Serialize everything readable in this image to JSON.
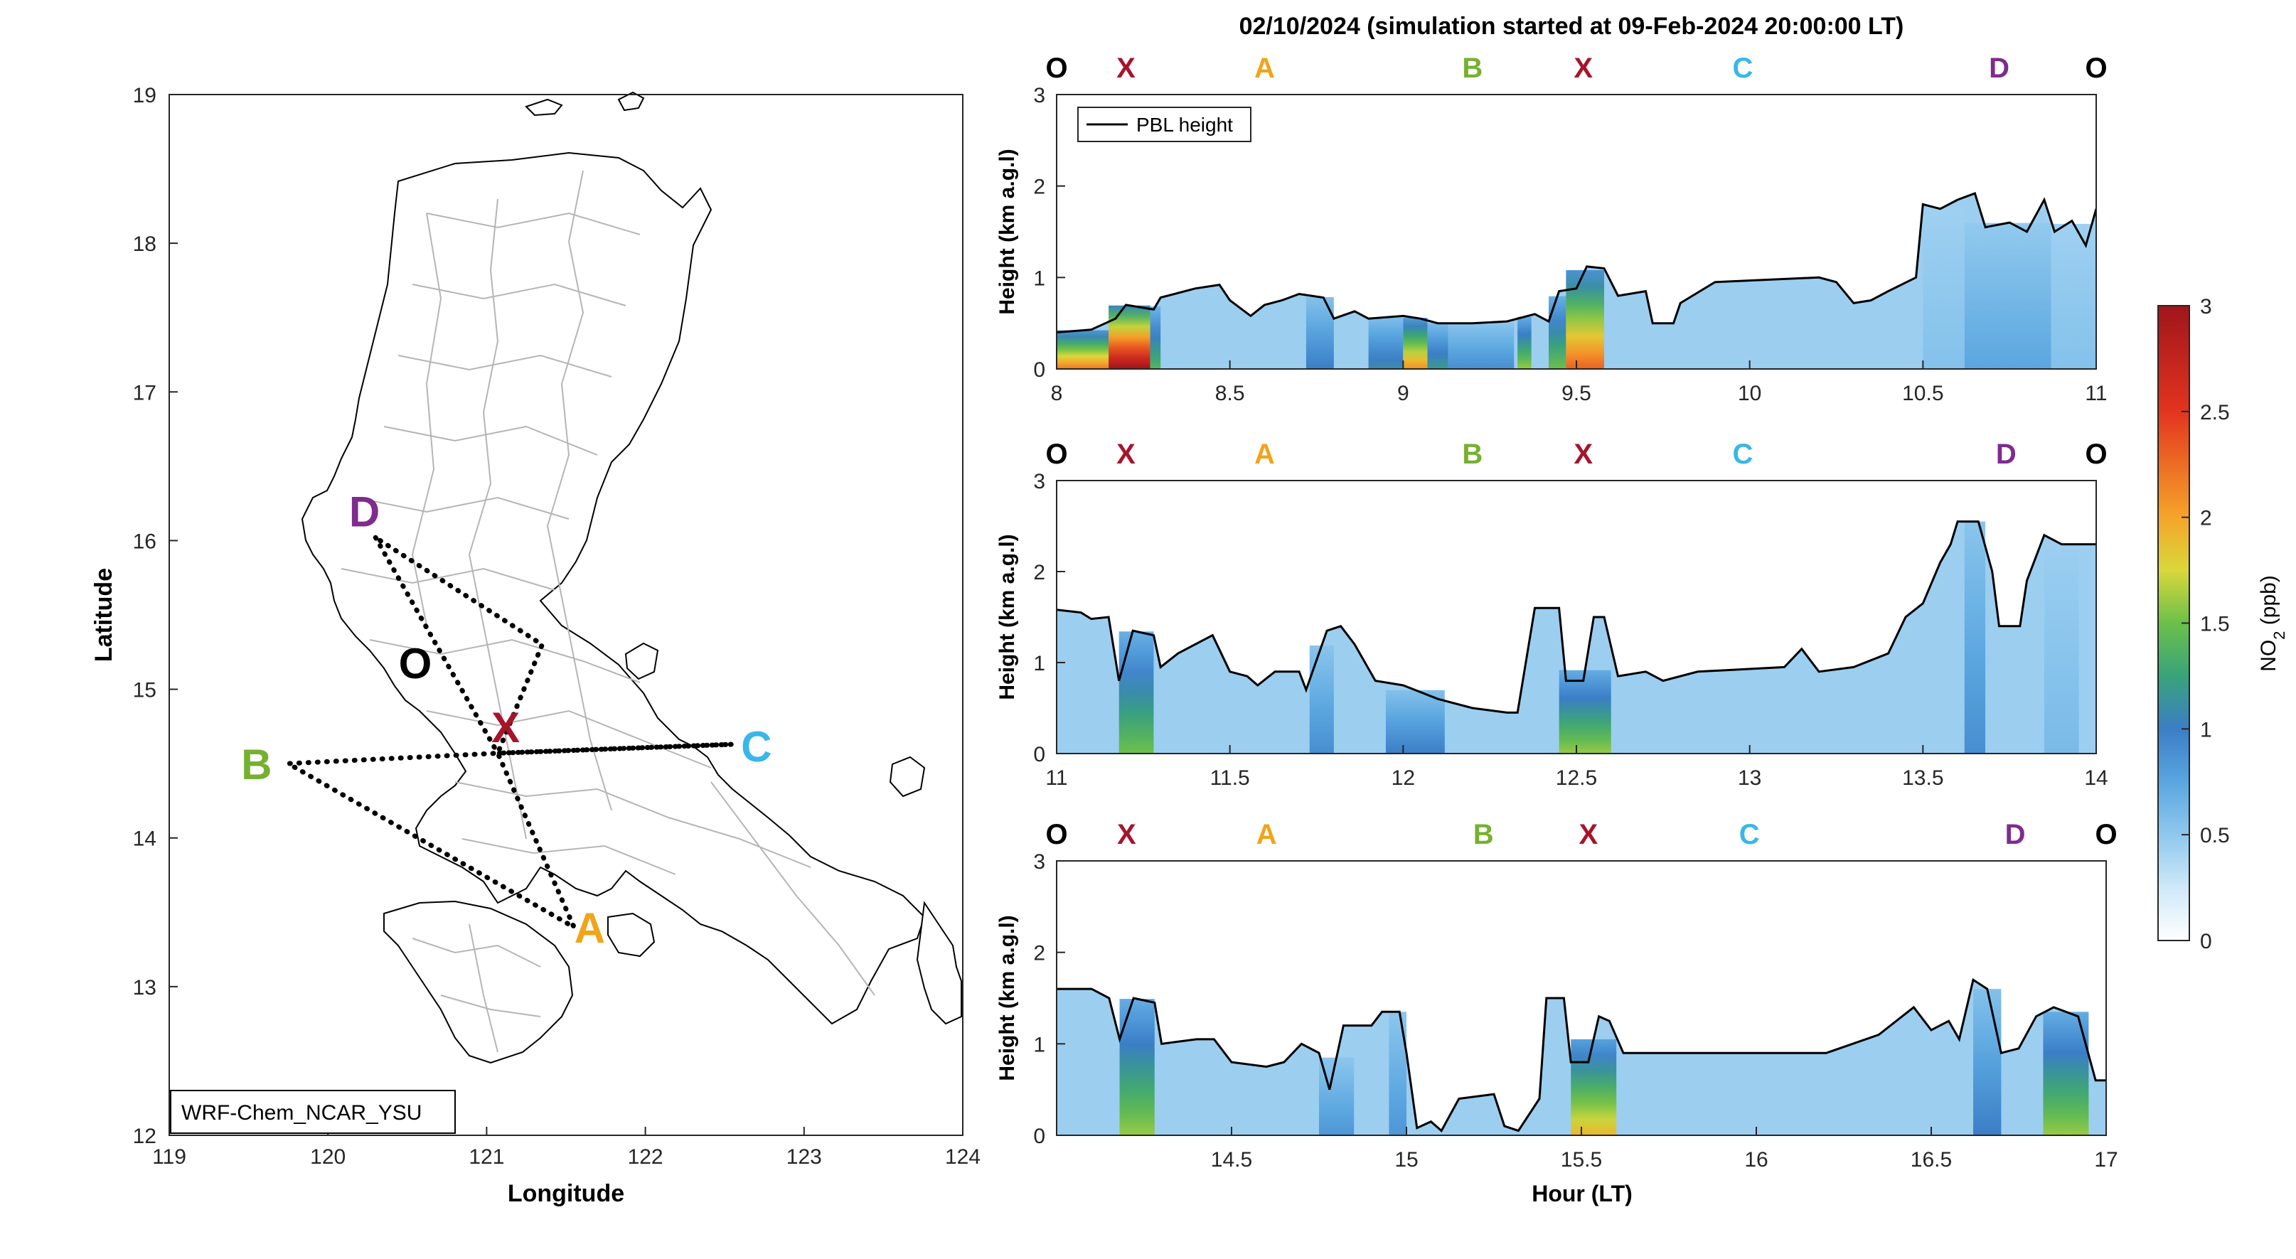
{
  "figure": {
    "title": "02/10/2024 (simulation started at 09-Feb-2024 20:00:00 LT)",
    "model_label": "WRF-Chem_NCAR_YSU"
  },
  "colors": {
    "line": "#000000",
    "axis": "#262626",
    "X": "#a5152b",
    "A": "#f0a41a",
    "B": "#76b030",
    "C": "#38b7e8",
    "D": "#7f2b8f",
    "O": "#000000",
    "map_boundary": "#b5b5b5"
  },
  "colormap": [
    [
      0,
      "#ffffff"
    ],
    [
      0.25,
      "#cfe8f8"
    ],
    [
      0.5,
      "#8fc8ee"
    ],
    [
      0.75,
      "#5aa6e0"
    ],
    [
      1.0,
      "#3b7ec6"
    ],
    [
      1.25,
      "#39a37a"
    ],
    [
      1.5,
      "#6cc04a"
    ],
    [
      1.75,
      "#d9d83a"
    ],
    [
      2.0,
      "#f6a42a"
    ],
    [
      2.5,
      "#e2341f"
    ],
    [
      3.0,
      "#a0151b"
    ]
  ],
  "chart_data": [
    {
      "type": "map",
      "xlabel": "Longitude",
      "ylabel": "Latitude",
      "xlim": [
        119,
        124
      ],
      "ylim": [
        12,
        19
      ],
      "xticks": [
        "119",
        "120",
        "121",
        "122",
        "123",
        "124"
      ],
      "yticks": [
        "12",
        "13",
        "14",
        "15",
        "16",
        "17",
        "18",
        "19"
      ],
      "points": [
        {
          "name": "O",
          "lon": 120.55,
          "lat": 15.18
        },
        {
          "name": "X",
          "lon": 121.12,
          "lat": 14.75
        },
        {
          "name": "A",
          "lon": 121.65,
          "lat": 13.4
        },
        {
          "name": "B",
          "lon": 119.55,
          "lat": 14.5
        },
        {
          "name": "C",
          "lon": 122.7,
          "lat": 14.62
        },
        {
          "name": "D",
          "lon": 120.23,
          "lat": 16.2
        }
      ],
      "route": [
        [
          120.3,
          16.02
        ],
        [
          121.07,
          14.57
        ],
        [
          122.55,
          14.63
        ],
        [
          121.07,
          14.57
        ],
        [
          121.55,
          13.4
        ],
        [
          119.75,
          14.5
        ],
        [
          121.07,
          14.57
        ],
        [
          121.35,
          15.3
        ],
        [
          120.3,
          16.02
        ]
      ]
    },
    {
      "type": "heatmap",
      "ylabel": "Height (km a.g.l)",
      "xlim": [
        8,
        11
      ],
      "ylim": [
        0,
        3
      ],
      "xticks": [
        "8",
        "8.5",
        "9",
        "9.5",
        "10",
        "10.5",
        "11"
      ],
      "yticks": [
        "0",
        "1",
        "2",
        "3"
      ],
      "top_labels": [
        {
          "label": "O",
          "x": 8.0
        },
        {
          "label": "X",
          "x": 8.2
        },
        {
          "label": "A",
          "x": 8.6
        },
        {
          "label": "B",
          "x": 9.2
        },
        {
          "label": "X",
          "x": 9.52
        },
        {
          "label": "C",
          "x": 9.98
        },
        {
          "label": "D",
          "x": 10.72
        },
        {
          "label": "O",
          "x": 11.0
        }
      ],
      "legend": [
        "PBL height"
      ],
      "pbl_height": [
        [
          8.0,
          0.4
        ],
        [
          8.1,
          0.43
        ],
        [
          8.17,
          0.55
        ],
        [
          8.2,
          0.7
        ],
        [
          8.28,
          0.65
        ],
        [
          8.3,
          0.78
        ],
        [
          8.4,
          0.88
        ],
        [
          8.47,
          0.92
        ],
        [
          8.5,
          0.75
        ],
        [
          8.56,
          0.58
        ],
        [
          8.6,
          0.7
        ],
        [
          8.65,
          0.75
        ],
        [
          8.7,
          0.82
        ],
        [
          8.77,
          0.78
        ],
        [
          8.8,
          0.55
        ],
        [
          8.86,
          0.63
        ],
        [
          8.9,
          0.55
        ],
        [
          9.0,
          0.58
        ],
        [
          9.05,
          0.55
        ],
        [
          9.1,
          0.5
        ],
        [
          9.2,
          0.5
        ],
        [
          9.3,
          0.52
        ],
        [
          9.38,
          0.6
        ],
        [
          9.42,
          0.52
        ],
        [
          9.45,
          0.85
        ],
        [
          9.5,
          0.88
        ],
        [
          9.53,
          1.12
        ],
        [
          9.58,
          1.1
        ],
        [
          9.62,
          0.8
        ],
        [
          9.7,
          0.85
        ],
        [
          9.72,
          0.5
        ],
        [
          9.78,
          0.5
        ],
        [
          9.8,
          0.72
        ],
        [
          9.9,
          0.95
        ],
        [
          10.2,
          1.0
        ],
        [
          10.25,
          0.95
        ],
        [
          10.3,
          0.72
        ],
        [
          10.35,
          0.75
        ],
        [
          10.4,
          0.85
        ],
        [
          10.48,
          1.0
        ],
        [
          10.5,
          1.8
        ],
        [
          10.55,
          1.75
        ],
        [
          10.6,
          1.85
        ],
        [
          10.65,
          1.92
        ],
        [
          10.68,
          1.55
        ],
        [
          10.75,
          1.6
        ],
        [
          10.8,
          1.5
        ],
        [
          10.85,
          1.85
        ],
        [
          10.88,
          1.5
        ],
        [
          10.93,
          1.62
        ],
        [
          10.97,
          1.35
        ],
        [
          11.0,
          1.75
        ]
      ],
      "no2_columns": [
        {
          "x": [
            8.0,
            8.15
          ],
          "no2": 2.2
        },
        {
          "x": [
            8.15,
            8.27
          ],
          "no2": 3.0
        },
        {
          "x": [
            8.27,
            8.3
          ],
          "no2": 1.4
        },
        {
          "x": [
            8.72,
            8.8
          ],
          "no2": 1.0
        },
        {
          "x": [
            8.9,
            9.0
          ],
          "no2": 1.1
        },
        {
          "x": [
            9.0,
            9.07
          ],
          "no2": 2.1
        },
        {
          "x": [
            9.07,
            9.13
          ],
          "no2": 1.2
        },
        {
          "x": [
            9.13,
            9.32
          ],
          "no2": 0.9
        },
        {
          "x": [
            9.33,
            9.37
          ],
          "no2": 1.6
        },
        {
          "x": [
            9.42,
            9.47
          ],
          "no2": 1.5
        },
        {
          "x": [
            9.47,
            9.58
          ],
          "no2": 2.3
        },
        {
          "x": [
            10.5,
            10.62
          ],
          "no2": 0.55
        },
        {
          "x": [
            10.62,
            10.87
          ],
          "no2": 0.75
        },
        {
          "x": [
            10.87,
            11.0
          ],
          "no2": 0.55
        }
      ]
    },
    {
      "type": "heatmap",
      "ylabel": "Height (km a.g.l)",
      "xlim": [
        11,
        14
      ],
      "ylim": [
        0,
        3
      ],
      "xticks": [
        "11",
        "11.5",
        "12",
        "12.5",
        "13",
        "13.5",
        "14"
      ],
      "yticks": [
        "0",
        "1",
        "2",
        "3"
      ],
      "top_labels": [
        {
          "label": "O",
          "x": 11.0
        },
        {
          "label": "X",
          "x": 11.2
        },
        {
          "label": "A",
          "x": 11.6
        },
        {
          "label": "B",
          "x": 12.2
        },
        {
          "label": "X",
          "x": 12.52
        },
        {
          "label": "C",
          "x": 12.98
        },
        {
          "label": "D",
          "x": 13.74
        },
        {
          "label": "O",
          "x": 14.0
        }
      ],
      "legend": [],
      "pbl_height": [
        [
          11.0,
          1.58
        ],
        [
          11.07,
          1.55
        ],
        [
          11.1,
          1.48
        ],
        [
          11.15,
          1.5
        ],
        [
          11.18,
          0.8
        ],
        [
          11.22,
          1.35
        ],
        [
          11.28,
          1.3
        ],
        [
          11.3,
          0.95
        ],
        [
          11.35,
          1.1
        ],
        [
          11.45,
          1.3
        ],
        [
          11.5,
          0.9
        ],
        [
          11.55,
          0.85
        ],
        [
          11.58,
          0.75
        ],
        [
          11.63,
          0.9
        ],
        [
          11.7,
          0.9
        ],
        [
          11.72,
          0.7
        ],
        [
          11.78,
          1.35
        ],
        [
          11.82,
          1.4
        ],
        [
          11.86,
          1.2
        ],
        [
          11.92,
          0.8
        ],
        [
          12.0,
          0.75
        ],
        [
          12.1,
          0.6
        ],
        [
          12.2,
          0.5
        ],
        [
          12.3,
          0.45
        ],
        [
          12.33,
          0.45
        ],
        [
          12.38,
          1.6
        ],
        [
          12.45,
          1.6
        ],
        [
          12.47,
          0.8
        ],
        [
          12.52,
          0.8
        ],
        [
          12.55,
          1.5
        ],
        [
          12.58,
          1.5
        ],
        [
          12.62,
          0.85
        ],
        [
          12.7,
          0.9
        ],
        [
          12.75,
          0.8
        ],
        [
          12.85,
          0.9
        ],
        [
          13.1,
          0.95
        ],
        [
          13.15,
          1.15
        ],
        [
          13.2,
          0.9
        ],
        [
          13.3,
          0.95
        ],
        [
          13.4,
          1.1
        ],
        [
          13.45,
          1.5
        ],
        [
          13.5,
          1.65
        ],
        [
          13.55,
          2.1
        ],
        [
          13.58,
          2.3
        ],
        [
          13.6,
          2.55
        ],
        [
          13.66,
          2.55
        ],
        [
          13.7,
          2.0
        ],
        [
          13.72,
          1.4
        ],
        [
          13.78,
          1.4
        ],
        [
          13.8,
          1.9
        ],
        [
          13.85,
          2.4
        ],
        [
          13.9,
          2.3
        ],
        [
          13.95,
          2.3
        ],
        [
          14.0,
          2.3
        ]
      ],
      "no2_columns": [
        {
          "x": [
            11.18,
            11.28
          ],
          "no2": 1.5
        },
        {
          "x": [
            11.73,
            11.8
          ],
          "no2": 0.9
        },
        {
          "x": [
            11.95,
            12.12
          ],
          "no2": 1.0
        },
        {
          "x": [
            12.45,
            12.6
          ],
          "no2": 1.6
        },
        {
          "x": [
            13.62,
            13.68
          ],
          "no2": 0.9
        },
        {
          "x": [
            13.85,
            13.95
          ],
          "no2": 0.6
        }
      ]
    },
    {
      "type": "heatmap",
      "ylabel": "Height (km a.g.l)",
      "xlabel": "Hour (LT)",
      "xlim": [
        14,
        17
      ],
      "ylim": [
        0,
        3
      ],
      "xticks": [
        "14.5",
        "15",
        "15.5",
        "16",
        "16.5",
        "17"
      ],
      "xtick_values": [
        14.5,
        15,
        15.5,
        16,
        16.5,
        17
      ],
      "yticks": [
        "0",
        "1",
        "2",
        "3"
      ],
      "top_labels": [
        {
          "label": "O",
          "x": 14.0
        },
        {
          "label": "X",
          "x": 14.2
        },
        {
          "label": "A",
          "x": 14.6
        },
        {
          "label": "B",
          "x": 15.22
        },
        {
          "label": "X",
          "x": 15.52
        },
        {
          "label": "C",
          "x": 15.98
        },
        {
          "label": "D",
          "x": 16.74
        },
        {
          "label": "O",
          "x": 17.0
        }
      ],
      "legend": [],
      "pbl_height": [
        [
          14.0,
          1.6
        ],
        [
          14.1,
          1.6
        ],
        [
          14.15,
          1.5
        ],
        [
          14.18,
          1.05
        ],
        [
          14.22,
          1.5
        ],
        [
          14.28,
          1.45
        ],
        [
          14.3,
          1.0
        ],
        [
          14.4,
          1.05
        ],
        [
          14.45,
          1.05
        ],
        [
          14.5,
          0.8
        ],
        [
          14.6,
          0.75
        ],
        [
          14.65,
          0.8
        ],
        [
          14.7,
          1.0
        ],
        [
          14.75,
          0.9
        ],
        [
          14.78,
          0.5
        ],
        [
          14.82,
          1.2
        ],
        [
          14.9,
          1.2
        ],
        [
          14.93,
          1.35
        ],
        [
          14.98,
          1.35
        ],
        [
          15.0,
          0.9
        ],
        [
          15.03,
          0.08
        ],
        [
          15.07,
          0.15
        ],
        [
          15.1,
          0.05
        ],
        [
          15.15,
          0.4
        ],
        [
          15.25,
          0.45
        ],
        [
          15.28,
          0.1
        ],
        [
          15.32,
          0.05
        ],
        [
          15.38,
          0.4
        ],
        [
          15.4,
          1.5
        ],
        [
          15.45,
          1.5
        ],
        [
          15.47,
          0.8
        ],
        [
          15.52,
          0.8
        ],
        [
          15.55,
          1.3
        ],
        [
          15.58,
          1.25
        ],
        [
          15.62,
          0.9
        ],
        [
          15.7,
          0.9
        ],
        [
          16.0,
          0.9
        ],
        [
          16.2,
          0.9
        ],
        [
          16.35,
          1.1
        ],
        [
          16.4,
          1.25
        ],
        [
          16.45,
          1.4
        ],
        [
          16.5,
          1.15
        ],
        [
          16.55,
          1.25
        ],
        [
          16.58,
          1.05
        ],
        [
          16.62,
          1.7
        ],
        [
          16.66,
          1.6
        ],
        [
          16.7,
          0.9
        ],
        [
          16.75,
          0.95
        ],
        [
          16.8,
          1.3
        ],
        [
          16.85,
          1.4
        ],
        [
          16.92,
          1.3
        ],
        [
          16.97,
          0.6
        ],
        [
          17.0,
          0.6
        ]
      ],
      "no2_columns": [
        {
          "x": [
            14.18,
            14.28
          ],
          "no2": 1.6
        },
        {
          "x": [
            14.75,
            14.85
          ],
          "no2": 0.85
        },
        {
          "x": [
            14.95,
            15.0
          ],
          "no2": 0.85
        },
        {
          "x": [
            15.47,
            15.6
          ],
          "no2": 1.9
        },
        {
          "x": [
            16.62,
            16.7
          ],
          "no2": 1.0
        },
        {
          "x": [
            16.82,
            16.95
          ],
          "no2": 1.6
        }
      ]
    },
    {
      "type": "colorbar",
      "label": "NO2 (ppb)",
      "label_base": "NO",
      "label_sub": "2",
      "label_unit": " (ppb)",
      "range": [
        0,
        3
      ],
      "ticks": [
        "0",
        "0.5",
        "1",
        "1.5",
        "2",
        "2.5",
        "3"
      ]
    }
  ]
}
